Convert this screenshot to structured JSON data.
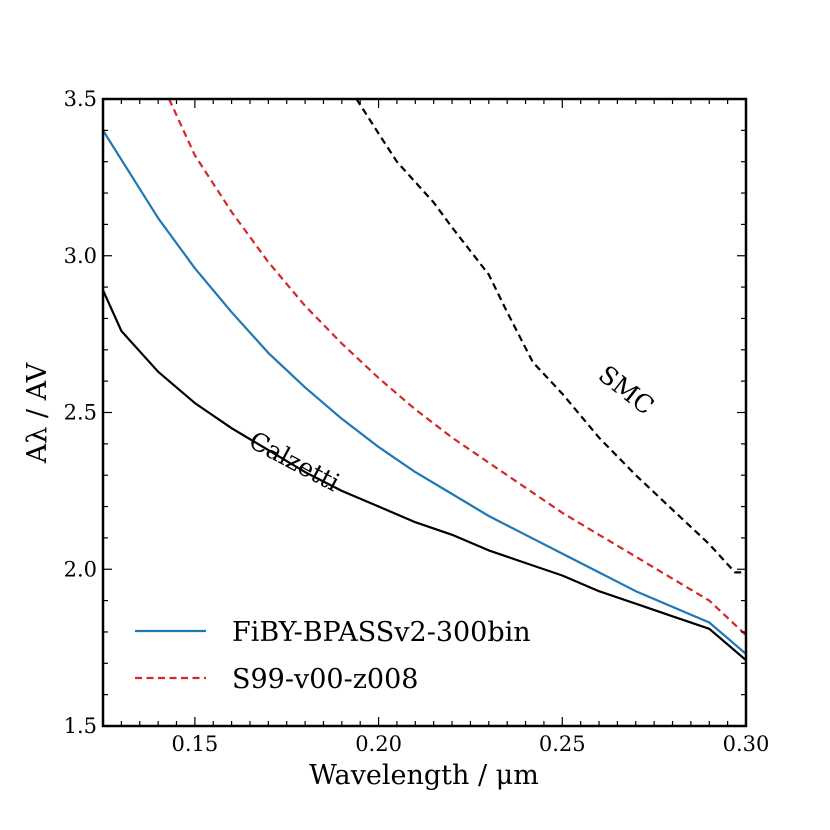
{
  "chart_data": {
    "type": "line",
    "title": "",
    "xlabel": "Wavelength / μm",
    "ylabel": "Aλ / AV",
    "xlim": [
      0.125,
      0.3
    ],
    "ylim": [
      1.5,
      3.5
    ],
    "x_ticks": [
      0.15,
      0.2,
      0.25,
      0.3
    ],
    "x_tick_labels": [
      "0.15",
      "0.20",
      "0.25",
      "0.30"
    ],
    "y_ticks": [
      1.5,
      2.0,
      2.5,
      3.0,
      3.5
    ],
    "y_tick_labels": [
      "1.5",
      "2.0",
      "2.5",
      "3.0",
      "3.5"
    ],
    "grid": false,
    "legend_position": "bottom-left",
    "series": [
      {
        "name": "FiBY-BPASSv2-300bin",
        "style": "solid",
        "color": "#1f77b4",
        "in_legend": true,
        "x": [
          0.125,
          0.14,
          0.15,
          0.16,
          0.17,
          0.18,
          0.19,
          0.2,
          0.21,
          0.22,
          0.23,
          0.24,
          0.25,
          0.26,
          0.27,
          0.28,
          0.29,
          0.3
        ],
        "y": [
          3.4,
          3.12,
          2.96,
          2.82,
          2.69,
          2.58,
          2.48,
          2.39,
          2.31,
          2.24,
          2.17,
          2.11,
          2.05,
          1.99,
          1.93,
          1.88,
          1.83,
          1.73
        ]
      },
      {
        "name": "S99-v00-z008",
        "style": "dashed",
        "color": "#d62728",
        "in_legend": true,
        "x": [
          0.143,
          0.15,
          0.16,
          0.17,
          0.18,
          0.19,
          0.2,
          0.21,
          0.22,
          0.23,
          0.24,
          0.25,
          0.26,
          0.27,
          0.28,
          0.29,
          0.3
        ],
        "y": [
          3.5,
          3.32,
          3.14,
          2.98,
          2.84,
          2.72,
          2.61,
          2.51,
          2.42,
          2.34,
          2.26,
          2.18,
          2.11,
          2.04,
          1.97,
          1.9,
          1.79
        ]
      },
      {
        "name": "Calzetti",
        "style": "solid",
        "color": "#000000",
        "in_legend": false,
        "x": [
          0.125,
          0.13,
          0.14,
          0.15,
          0.16,
          0.17,
          0.18,
          0.19,
          0.2,
          0.21,
          0.22,
          0.23,
          0.24,
          0.25,
          0.26,
          0.27,
          0.28,
          0.29,
          0.3
        ],
        "y": [
          2.89,
          2.76,
          2.63,
          2.53,
          2.45,
          2.38,
          2.31,
          2.25,
          2.2,
          2.15,
          2.11,
          2.06,
          2.02,
          1.98,
          1.93,
          1.89,
          1.85,
          1.81,
          1.71
        ]
      },
      {
        "name": "SMC",
        "style": "dashed",
        "color": "#000000",
        "in_legend": false,
        "x": [
          0.194,
          0.2,
          0.205,
          0.215,
          0.22,
          0.23,
          0.235,
          0.242,
          0.25,
          0.26,
          0.27,
          0.28,
          0.29,
          0.297,
          0.3
        ],
        "y": [
          3.5,
          3.39,
          3.3,
          3.17,
          3.09,
          2.94,
          2.82,
          2.66,
          2.56,
          2.42,
          2.3,
          2.19,
          2.08,
          1.99,
          1.99
        ]
      }
    ],
    "annotations": [
      {
        "text": "SMC",
        "x": 0.266,
        "y": 2.55,
        "rotation_deg": 38
      },
      {
        "text": "Calzetti",
        "x": 0.176,
        "y": 2.32,
        "rotation_deg": 28
      }
    ]
  }
}
